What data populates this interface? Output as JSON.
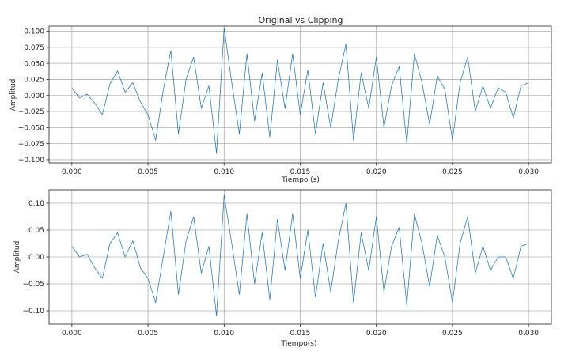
{
  "chart_data": [
    {
      "type": "line",
      "title": "Original vs Clipping",
      "xlabel": "Tiempo (s)",
      "ylabel": "Amplitud",
      "xlim": [
        -0.0015,
        0.0315
      ],
      "ylim": [
        -0.105,
        0.108
      ],
      "xticks": [
        0.0,
        0.005,
        0.01,
        0.015,
        0.02,
        0.025,
        0.03
      ],
      "xtick_labels": [
        "0.000",
        "0.005",
        "0.010",
        "0.015",
        "0.020",
        "0.025",
        "0.030"
      ],
      "yticks": [
        -0.1,
        -0.075,
        -0.05,
        -0.025,
        0.0,
        0.025,
        0.05,
        0.075,
        0.1
      ],
      "ytick_labels": [
        "−0.100",
        "−0.075",
        "−0.050",
        "−0.025",
        "0.000",
        "0.025",
        "0.050",
        "0.075",
        "0.100"
      ],
      "grid": true,
      "series": [
        {
          "color": "#1f77b4",
          "x": [
            0.0,
            0.0005,
            0.001,
            0.0015,
            0.002,
            0.0025,
            0.003,
            0.0035,
            0.004,
            0.0045,
            0.005,
            0.0055,
            0.006,
            0.0065,
            0.007,
            0.0075,
            0.008,
            0.0085,
            0.009,
            0.0095,
            0.01,
            0.0105,
            0.011,
            0.0115,
            0.012,
            0.0125,
            0.013,
            0.0135,
            0.014,
            0.0145,
            0.015,
            0.0155,
            0.016,
            0.0165,
            0.017,
            0.0175,
            0.018,
            0.0185,
            0.019,
            0.0195,
            0.02,
            0.0205,
            0.021,
            0.0215,
            0.022,
            0.0225,
            0.023,
            0.0235,
            0.024,
            0.0245,
            0.025,
            0.0255,
            0.026,
            0.0265,
            0.027,
            0.0275,
            0.028,
            0.0285,
            0.029,
            0.0295,
            0.03
          ],
          "y": [
            0.012,
            -0.004,
            0.002,
            -0.012,
            -0.03,
            0.018,
            0.038,
            0.005,
            0.02,
            -0.01,
            -0.03,
            -0.07,
            0.008,
            0.07,
            -0.06,
            0.025,
            0.06,
            -0.02,
            0.015,
            -0.09,
            0.105,
            0.02,
            -0.06,
            0.065,
            -0.04,
            0.035,
            -0.065,
            0.055,
            -0.02,
            0.065,
            -0.03,
            0.04,
            -0.06,
            0.02,
            -0.05,
            0.025,
            0.08,
            -0.07,
            0.035,
            -0.02,
            0.06,
            -0.05,
            0.015,
            0.045,
            -0.075,
            0.065,
            0.02,
            -0.045,
            0.03,
            0.01,
            -0.07,
            0.02,
            0.06,
            -0.025,
            0.015,
            -0.02,
            0.012,
            0.005,
            -0.035,
            0.015,
            0.02
          ]
        }
      ]
    },
    {
      "type": "line",
      "title": "",
      "xlabel": "Tiempo(s)",
      "ylabel": "Amplitud",
      "xlim": [
        -0.0015,
        0.0315
      ],
      "ylim": [
        -0.125,
        0.125
      ],
      "xticks": [
        0.0,
        0.005,
        0.01,
        0.015,
        0.02,
        0.025,
        0.03
      ],
      "xtick_labels": [
        "0.000",
        "0.005",
        "0.010",
        "0.015",
        "0.020",
        "0.025",
        "0.030"
      ],
      "yticks": [
        -0.1,
        -0.05,
        0.0,
        0.05,
        0.1
      ],
      "ytick_labels": [
        "−0.10",
        "−0.05",
        "0.00",
        "0.05",
        "0.10"
      ],
      "grid": true,
      "series": [
        {
          "color": "#1f77b4",
          "x": [
            0.0,
            0.0005,
            0.001,
            0.0015,
            0.002,
            0.0025,
            0.003,
            0.0035,
            0.004,
            0.0045,
            0.005,
            0.0055,
            0.006,
            0.0065,
            0.007,
            0.0075,
            0.008,
            0.0085,
            0.009,
            0.0095,
            0.01,
            0.0105,
            0.011,
            0.0115,
            0.012,
            0.0125,
            0.013,
            0.0135,
            0.014,
            0.0145,
            0.015,
            0.0155,
            0.016,
            0.0165,
            0.017,
            0.0175,
            0.018,
            0.0185,
            0.019,
            0.0195,
            0.02,
            0.0205,
            0.021,
            0.0215,
            0.022,
            0.0225,
            0.023,
            0.0235,
            0.024,
            0.0245,
            0.025,
            0.0255,
            0.026,
            0.0265,
            0.027,
            0.0275,
            0.028,
            0.0285,
            0.029,
            0.0295,
            0.03
          ],
          "y": [
            0.02,
            0.0,
            0.005,
            -0.02,
            -0.04,
            0.025,
            0.045,
            0.0,
            0.03,
            -0.02,
            -0.04,
            -0.085,
            0.0,
            0.085,
            -0.07,
            0.03,
            0.075,
            -0.03,
            0.02,
            -0.11,
            0.115,
            0.025,
            -0.07,
            0.08,
            -0.05,
            0.045,
            -0.08,
            0.07,
            -0.025,
            0.08,
            -0.04,
            0.05,
            -0.075,
            0.025,
            -0.065,
            0.03,
            0.1,
            -0.085,
            0.045,
            -0.025,
            0.075,
            -0.065,
            0.02,
            0.055,
            -0.09,
            0.08,
            0.025,
            -0.055,
            0.04,
            0.0,
            -0.085,
            0.025,
            0.075,
            -0.03,
            0.02,
            -0.025,
            0.0,
            0.0,
            -0.04,
            0.02,
            0.025
          ]
        }
      ]
    }
  ]
}
